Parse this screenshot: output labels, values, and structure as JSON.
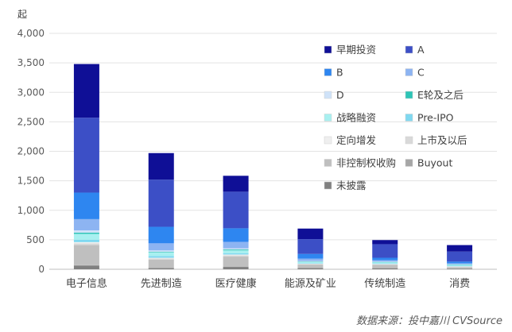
{
  "chart_data": {
    "type": "bar",
    "stacked": true,
    "unit_label": "起",
    "source": "数据来源：投中嘉川 CVSource",
    "ylim": [
      0,
      4000
    ],
    "yticks": [
      "0",
      "500",
      "1,000",
      "1,500",
      "2,000",
      "2,500",
      "3,000",
      "3,500",
      "4,000"
    ],
    "ytick_values": [
      0,
      500,
      1000,
      1500,
      2000,
      2500,
      3000,
      3500,
      4000
    ],
    "categories": [
      "电子信息",
      "先进制造",
      "医疗健康",
      "能源及矿业",
      "传统制造",
      "消费"
    ],
    "series": [
      {
        "name": "未披露",
        "color": "#808080",
        "values": [
          60,
          20,
          40,
          20,
          15,
          10
        ]
      },
      {
        "name": "Buyout",
        "color": "#a6a6a6",
        "values": [
          10,
          5,
          5,
          5,
          5,
          5
        ]
      },
      {
        "name": "非控制权收购",
        "color": "#bfbfbf",
        "values": [
          340,
          140,
          170,
          55,
          55,
          20
        ]
      },
      {
        "name": "上市及以后",
        "color": "#d9d9d9",
        "values": [
          30,
          20,
          20,
          10,
          10,
          10
        ]
      },
      {
        "name": "定向增发",
        "color": "#efefef",
        "values": [
          20,
          10,
          15,
          5,
          5,
          5
        ]
      },
      {
        "name": "Pre-IPO",
        "color": "#7fd8f0",
        "values": [
          40,
          30,
          20,
          10,
          10,
          10
        ]
      },
      {
        "name": "战略融资",
        "color": "#a8f0f0",
        "values": [
          100,
          60,
          50,
          20,
          20,
          15
        ]
      },
      {
        "name": "E轮及之后",
        "color": "#2ec4b6",
        "values": [
          20,
          10,
          15,
          5,
          5,
          5
        ]
      },
      {
        "name": "D",
        "color": "#cfe2f8",
        "values": [
          40,
          25,
          20,
          10,
          5,
          5
        ]
      },
      {
        "name": "C",
        "color": "#8db4f2",
        "values": [
          190,
          120,
          110,
          40,
          25,
          15
        ]
      },
      {
        "name": "B",
        "color": "#2e86f0",
        "values": [
          450,
          280,
          230,
          80,
          40,
          30
        ]
      },
      {
        "name": "A",
        "color": "#3c4fc6",
        "values": [
          1270,
          800,
          620,
          250,
          230,
          170
        ]
      },
      {
        "name": "早期投资",
        "color": "#0f0f96",
        "values": [
          910,
          450,
          270,
          180,
          70,
          110
        ]
      }
    ],
    "legend_order": [
      "早期投资",
      "A",
      "B",
      "C",
      "D",
      "E轮及之后",
      "战略融资",
      "Pre-IPO",
      "定向增发",
      "上市及以后",
      "非控制权收购",
      "Buyout",
      "未披露"
    ],
    "legend_position": "top-right",
    "grid": true
  }
}
